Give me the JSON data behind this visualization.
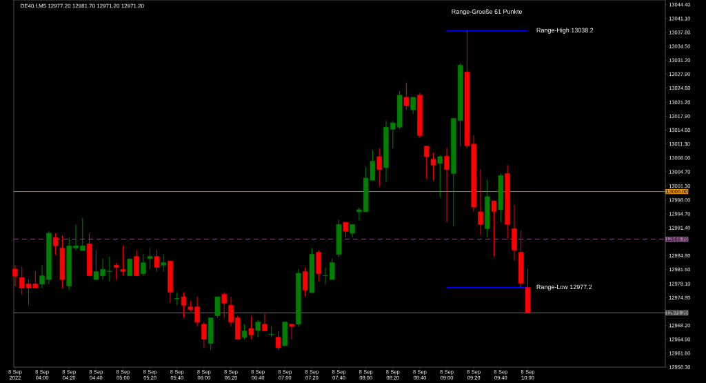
{
  "chart_data": {
    "type": "candlestick",
    "title": "DE40.f,M5 12977.20 12981.70 12971.20 12971.20",
    "annotations": [
      "Range-Groeße 61 Punkte",
      {
        "text": "Range-High 13038.2",
        "x": "2022-09-08T10:00",
        "y": 13038.2
      },
      {
        "text": "Range-Low 12977.2",
        "x": "2022-09-08T10:00",
        "y": 12977.2
      }
    ],
    "x": [
      "2022-09-08T03:40",
      "2022-09-08T03:45",
      "2022-09-08T03:50",
      "2022-09-08T03:55",
      "2022-09-08T04:00",
      "2022-09-08T04:05",
      "2022-09-08T04:10",
      "2022-09-08T04:15",
      "2022-09-08T04:20",
      "2022-09-08T04:25",
      "2022-09-08T04:30",
      "2022-09-08T04:35",
      "2022-09-08T04:40",
      "2022-09-08T04:45",
      "2022-09-08T04:50",
      "2022-09-08T04:55",
      "2022-09-08T05:00",
      "2022-09-08T05:05",
      "2022-09-08T05:10",
      "2022-09-08T05:15",
      "2022-09-08T05:20",
      "2022-09-08T05:25",
      "2022-09-08T05:30",
      "2022-09-08T05:35",
      "2022-09-08T05:40",
      "2022-09-08T05:45",
      "2022-09-08T05:50",
      "2022-09-08T05:55",
      "2022-09-08T06:00",
      "2022-09-08T06:05",
      "2022-09-08T06:10",
      "2022-09-08T06:15",
      "2022-09-08T06:20",
      "2022-09-08T06:25",
      "2022-09-08T06:30",
      "2022-09-08T06:35",
      "2022-09-08T06:40",
      "2022-09-08T06:45",
      "2022-09-08T06:50",
      "2022-09-08T06:55",
      "2022-09-08T07:00",
      "2022-09-08T07:05",
      "2022-09-08T07:10",
      "2022-09-08T07:15",
      "2022-09-08T07:20",
      "2022-09-08T07:25",
      "2022-09-08T07:30",
      "2022-09-08T07:35",
      "2022-09-08T07:40",
      "2022-09-08T07:45",
      "2022-09-08T07:50",
      "2022-09-08T07:55",
      "2022-09-08T08:00",
      "2022-09-08T08:05",
      "2022-09-08T08:10",
      "2022-09-08T08:15",
      "2022-09-08T08:20",
      "2022-09-08T08:25",
      "2022-09-08T08:30",
      "2022-09-08T08:35",
      "2022-09-08T08:40",
      "2022-09-08T08:45",
      "2022-09-08T08:50",
      "2022-09-08T08:55",
      "2022-09-08T09:00",
      "2022-09-08T09:05",
      "2022-09-08T09:10",
      "2022-09-08T09:15",
      "2022-09-08T09:20",
      "2022-09-08T09:25",
      "2022-09-08T09:30",
      "2022-09-08T09:35",
      "2022-09-08T09:40",
      "2022-09-08T09:45",
      "2022-09-08T09:50",
      "2022-09-08T09:55",
      "2022-09-08T10:00"
    ],
    "ohlc": [
      [
        12981.6,
        12982.5,
        12977.5,
        12979.9
      ],
      [
        12979.6,
        12982.1,
        12975.5,
        12977.1
      ],
      [
        12978.1,
        12979.1,
        12973.0,
        12977.1
      ],
      [
        12978.1,
        12981.1,
        12977.1,
        12977.1
      ],
      [
        12978.0,
        12982.5,
        12977.1,
        12980.0
      ],
      [
        12979.1,
        12990.6,
        12978.0,
        12990.1
      ],
      [
        12989.1,
        12990.1,
        12985.0,
        12987.1
      ],
      [
        12986.6,
        12989.6,
        12977.1,
        12979.1
      ],
      [
        12977.6,
        12989.1,
        12976.6,
        12987.1
      ],
      [
        12986.6,
        12992.2,
        12986.0,
        12987.1
      ],
      [
        12986.0,
        12993.7,
        12986.0,
        12987.1
      ],
      [
        12987.6,
        12990.1,
        12980.0,
        12980.0
      ],
      [
        12979.1,
        12986.0,
        12979.1,
        12981.0
      ],
      [
        12980.0,
        12984.1,
        12979.1,
        12981.5
      ],
      [
        12981.0,
        12984.6,
        12978.6,
        12981.1
      ],
      [
        12982.5,
        12983.0,
        12979.1,
        12982.0
      ],
      [
        12981.5,
        12987.1,
        12980.0,
        12981.0
      ],
      [
        12980.0,
        12984.0,
        12980.0,
        12984.0
      ],
      [
        12984.6,
        12986.1,
        12980.0,
        12980.0
      ],
      [
        12980.5,
        12985.1,
        12980.0,
        12983.1
      ],
      [
        12984.1,
        12986.6,
        12981.5,
        12984.6
      ],
      [
        12984.6,
        12986.1,
        12981.0,
        12982.0
      ],
      [
        12982.5,
        12985.1,
        12981.0,
        12983.1
      ],
      [
        12983.5,
        12983.5,
        12973.6,
        12976.1
      ],
      [
        12974.5,
        12976.1,
        12973.0,
        12974.6
      ],
      [
        12975.0,
        12976.1,
        12970.0,
        12973.0
      ],
      [
        12972.6,
        12974.1,
        12971.5,
        12972.0
      ],
      [
        12972.6,
        12975.0,
        12968.0,
        12969.0
      ],
      [
        12968.5,
        12969.0,
        12962.9,
        12964.9
      ],
      [
        12963.9,
        12970.0,
        12962.4,
        12970.0
      ],
      [
        12970.5,
        12975.0,
        12970.0,
        12975.0
      ],
      [
        12975.6,
        12976.1,
        12970.0,
        12973.5
      ],
      [
        12973.0,
        12975.0,
        12968.0,
        12969.0
      ],
      [
        12970.0,
        12970.5,
        12964.9,
        12964.9
      ],
      [
        12965.4,
        12968.5,
        12964.9,
        12966.9
      ],
      [
        12967.5,
        12970.5,
        12964.9,
        12966.0
      ],
      [
        12967.0,
        12969.5,
        12965.4,
        12969.0
      ],
      [
        12968.5,
        12971.0,
        12966.9,
        12966.9
      ],
      [
        12966.0,
        12968.0,
        12965.4,
        12966.1
      ],
      [
        12965.4,
        12966.9,
        12962.4,
        12962.9
      ],
      [
        12963.4,
        12969.0,
        12963.4,
        12969.0
      ],
      [
        12968.5,
        12968.5,
        12964.9,
        12968.0
      ],
      [
        12968.5,
        12981.6,
        12968.0,
        12980.6
      ],
      [
        12981.0,
        12982.0,
        12975.1,
        12976.6
      ],
      [
        12976.0,
        12986.6,
        12976.0,
        12985.1
      ],
      [
        12985.6,
        12986.1,
        12978.6,
        12980.5
      ],
      [
        12980.0,
        12982.0,
        12978.0,
        12980.1
      ],
      [
        12979.1,
        12984.1,
        12979.1,
        12983.1
      ],
      [
        12985.1,
        12993.2,
        12984.5,
        12992.2
      ],
      [
        12992.7,
        12992.7,
        12989.1,
        12990.6
      ],
      [
        12990.1,
        12992.2,
        12989.1,
        12992.2
      ],
      [
        12995.2,
        12996.2,
        12993.2,
        12995.7
      ],
      [
        12995.2,
        13005.8,
        12995.2,
        13003.2
      ],
      [
        13002.7,
        13009.8,
        13002.7,
        13007.2
      ],
      [
        13008.3,
        13010.3,
        13001.2,
        13005.2
      ],
      [
        13005.7,
        13016.8,
        13002.2,
        13015.3
      ],
      [
        13014.8,
        13016.8,
        13010.3,
        13016.3
      ],
      [
        13015.3,
        13023.9,
        13014.8,
        13022.9
      ],
      [
        13022.4,
        13025.9,
        13019.4,
        13020.4
      ],
      [
        13019.4,
        13022.4,
        13018.4,
        13022.4
      ],
      [
        13022.9,
        13023.4,
        13012.8,
        13013.3
      ],
      [
        13010.8,
        13010.8,
        13003.1,
        13008.3
      ],
      [
        13007.7,
        13009.2,
        13002.6,
        13006.3
      ],
      [
        13006.7,
        13008.7,
        12998.6,
        13008.3
      ],
      [
        13008.4,
        13010.4,
        12992.7,
        13005.2
      ],
      [
        13004.3,
        13017.4,
        12991.7,
        13017.4
      ],
      [
        13016.9,
        13030.5,
        13010.8,
        13030.0
      ],
      [
        13028.4,
        13038.2,
        13010.3,
        13010.9
      ],
      [
        13011.3,
        13013.4,
        12995.2,
        12996.3
      ],
      [
        12995.2,
        13005.3,
        12989.7,
        12992.2
      ],
      [
        12991.2,
        13002.8,
        12989.1,
        12998.8
      ],
      [
        12997.8,
        12997.8,
        12984.6,
        12995.3
      ],
      [
        12995.7,
        13004.3,
        12992.7,
        13003.8
      ],
      [
        13004.3,
        13006.3,
        12988.7,
        12992.2
      ],
      [
        12991.2,
        12996.8,
        12983.6,
        12986.1
      ],
      [
        12985.6,
        12990.7,
        12977.2,
        12978.2
      ],
      [
        12977.2,
        12981.7,
        12971.2,
        12971.2
      ]
    ],
    "colors": [
      "#ff0000",
      "#ff0000",
      "#ff0000",
      "#ff0000",
      "#008000",
      "#008000",
      "#ff0000",
      "#ff0000",
      "#008000",
      "#008000",
      "#008000",
      "#ff0000",
      "#008000",
      "#008000",
      "#008000",
      "#ff0000",
      "#ff0000",
      "#008000",
      "#ff0000",
      "#008000",
      "#008000",
      "#ff0000",
      "#008000",
      "#ff0000",
      "#008000",
      "#ff0000",
      "#ff0000",
      "#ff0000",
      "#ff0000",
      "#008000",
      "#008000",
      "#ff0000",
      "#ff0000",
      "#ff0000",
      "#008000",
      "#ff0000",
      "#008000",
      "#ff0000",
      "#008000",
      "#ff0000",
      "#008000",
      "#ff0000",
      "#008000",
      "#ff0000",
      "#008000",
      "#ff0000",
      "#008000",
      "#008000",
      "#008000",
      "#ff0000",
      "#008000",
      "#008000",
      "#008000",
      "#008000",
      "#ff0000",
      "#008000",
      "#008000",
      "#008000",
      "#ff0000",
      "#008000",
      "#ff0000",
      "#ff0000",
      "#ff0000",
      "#008000",
      "#ff0000",
      "#008000",
      "#008000",
      "#ff0000",
      "#ff0000",
      "#ff0000",
      "#008000",
      "#ff0000",
      "#008000",
      "#ff0000",
      "#ff0000",
      "#ff0000",
      "#ff0000"
    ],
    "series": [
      {
        "type": "line",
        "color": "#0000ff",
        "x": [
          "2022-09-08T09:00",
          "2022-09-08T10:00"
        ],
        "values": [
          13038.2,
          13038.2
        ]
      },
      {
        "type": "line",
        "color": "#0000ff",
        "x": [
          "2022-09-08T09:00",
          "2022-09-08T10:00"
        ],
        "values": [
          12977.2,
          12977.2
        ]
      }
    ],
    "ref_lines": [
      {
        "axis": "y",
        "value": 13000,
        "label": "13000.00",
        "color": "#e69500",
        "line_style": "solid"
      },
      {
        "axis": "y",
        "value": 12988.7,
        "label": "12988.70",
        "color": "#a060a0",
        "line_style": "dashed"
      },
      {
        "axis": "y",
        "value": 12971.2,
        "label": "12971.20",
        "color": "#8c8c8c",
        "line_style": "solid"
      }
    ],
    "xlim": [
      "2022-09-08T03:39",
      "2022-09-08T11:42"
    ],
    "xticks": [
      {
        "value": "2022-09-08T03:40",
        "label": "8 Sep 2022"
      },
      {
        "value": "2022-09-08T04:00",
        "label": "8 Sep 04:00"
      },
      {
        "value": "2022-09-08T04:20",
        "label": "8 Sep 04:20"
      },
      {
        "value": "2022-09-08T04:40",
        "label": "8 Sep 04:40"
      },
      {
        "value": "2022-09-08T05:00",
        "label": "8 Sep 05:00"
      },
      {
        "value": "2022-09-08T05:20",
        "label": "8 Sep 05:20"
      },
      {
        "value": "2022-09-08T05:40",
        "label": "8 Sep 05:40"
      },
      {
        "value": "2022-09-08T06:00",
        "label": "8 Sep 06:00"
      },
      {
        "value": "2022-09-08T06:20",
        "label": "8 Sep 06:20"
      },
      {
        "value": "2022-09-08T06:40",
        "label": "8 Sep 06:40"
      },
      {
        "value": "2022-09-08T07:00",
        "label": "8 Sep 07:00"
      },
      {
        "value": "2022-09-08T07:20",
        "label": "8 Sep 07:20"
      },
      {
        "value": "2022-09-08T07:40",
        "label": "8 Sep 07:40"
      },
      {
        "value": "2022-09-08T08:00",
        "label": "8 Sep 08:00"
      },
      {
        "value": "2022-09-08T08:20",
        "label": "8 Sep 08:20"
      },
      {
        "value": "2022-09-08T08:40",
        "label": "8 Sep 08:40"
      },
      {
        "value": "2022-09-08T09:00",
        "label": "8 Sep 09:00"
      },
      {
        "value": "2022-09-08T09:20",
        "label": "8 Sep 09:20"
      },
      {
        "value": "2022-09-08T09:40",
        "label": "8 Sep 09:40"
      },
      {
        "value": "2022-09-08T10:00",
        "label": "8 Sep 10:00"
      }
    ],
    "ylim": [
      12958.3,
      13045.5
    ],
    "yticks": [
      {
        "value": 12958.3,
        "label": "12958.30"
      },
      {
        "value": 12961.6,
        "label": "12961.60"
      },
      {
        "value": 12964.9,
        "label": "12964.90"
      },
      {
        "value": 12968.2,
        "label": "12968.20"
      },
      {
        "value": 12974.8,
        "label": "12974.80"
      },
      {
        "value": 12978.1,
        "label": "12978.10"
      },
      {
        "value": 12981.5,
        "label": "12981.50"
      },
      {
        "value": 12984.8,
        "label": "12984.80"
      },
      {
        "value": 12991.4,
        "label": "12991.40"
      },
      {
        "value": 12994.7,
        "label": "12994.70"
      },
      {
        "value": 12998.0,
        "label": "12998.00"
      },
      {
        "value": 13001.3,
        "label": "13001.30"
      },
      {
        "value": 13004.7,
        "label": "13004.70"
      },
      {
        "value": 13008.0,
        "label": "13008.00"
      },
      {
        "value": 13011.3,
        "label": "13011.30"
      },
      {
        "value": 13014.6,
        "label": "13014.60"
      },
      {
        "value": 13017.9,
        "label": "13017.90"
      },
      {
        "value": 13021.2,
        "label": "13021.20"
      },
      {
        "value": 13024.6,
        "label": "13024.60"
      },
      {
        "value": 13027.9,
        "label": "13027.90"
      },
      {
        "value": 13031.2,
        "label": "13031.20"
      },
      {
        "value": 13034.5,
        "label": "13034.50"
      },
      {
        "value": 13037.8,
        "label": "13037.80"
      },
      {
        "value": 13041.1,
        "label": "13041.10"
      },
      {
        "value": 13044.4,
        "label": "13044.40"
      }
    ]
  }
}
